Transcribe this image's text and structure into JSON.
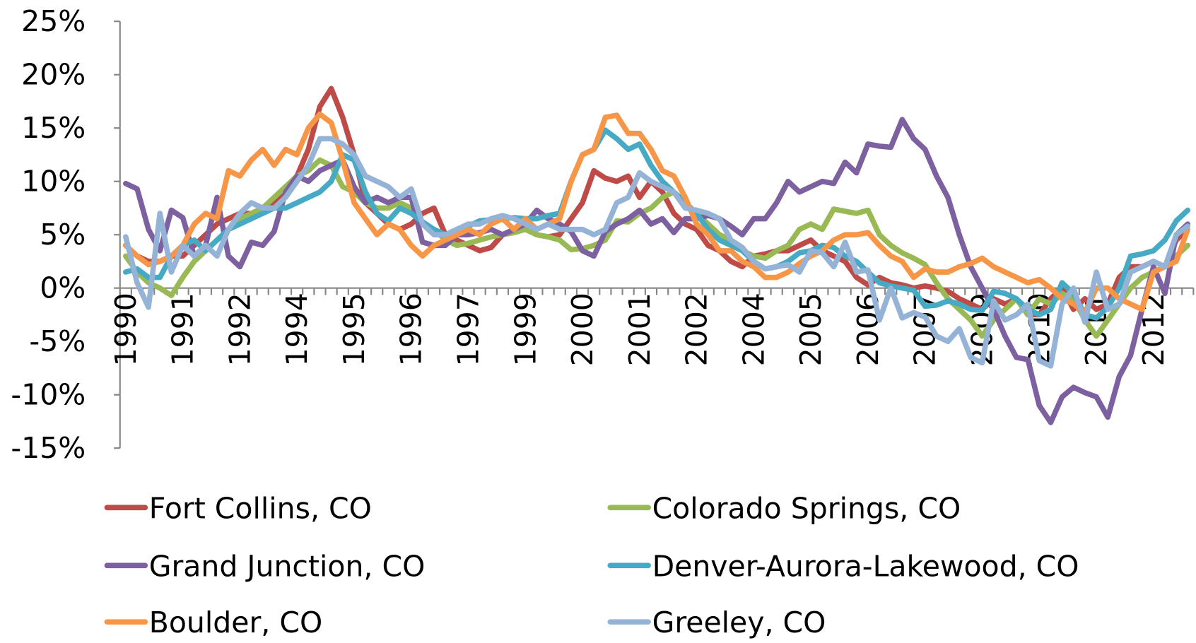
{
  "chart_data": {
    "type": "line",
    "categories": [
      "1990",
      null,
      null,
      null,
      null,
      "1991",
      null,
      null,
      null,
      null,
      "1992",
      null,
      null,
      null,
      null,
      "1994",
      null,
      null,
      null,
      null,
      "1995",
      null,
      null,
      null,
      null,
      "1996",
      null,
      null,
      null,
      null,
      "1997",
      null,
      null,
      null,
      null,
      "1999",
      null,
      null,
      null,
      null,
      "2000",
      null,
      null,
      null,
      null,
      "2001",
      null,
      null,
      null,
      null,
      "2002",
      null,
      null,
      null,
      null,
      "2004",
      null,
      null,
      null,
      null,
      "2005",
      null,
      null,
      null,
      null,
      "2006",
      null,
      null,
      null,
      null,
      "2007",
      null,
      null,
      null,
      null,
      "2009",
      null,
      null,
      null,
      null,
      "2010",
      null,
      null,
      null,
      null,
      "2011",
      null,
      null,
      null,
      null,
      "2012",
      null,
      null,
      null
    ],
    "ylim": [
      -15,
      25
    ],
    "yticks": [
      {
        "value": -15,
        "label": "-15%"
      },
      {
        "value": -10,
        "label": "-10%"
      },
      {
        "value": -5,
        "label": "-5%"
      },
      {
        "value": 0,
        "label": "0%"
      },
      {
        "value": 5,
        "label": "5%"
      },
      {
        "value": 10,
        "label": "10%"
      },
      {
        "value": 15,
        "label": "15%"
      },
      {
        "value": 20,
        "label": "20%"
      },
      {
        "value": 25,
        "label": "25%"
      }
    ],
    "grid": false,
    "legend": "bottom",
    "series": [
      {
        "name": "Fort Collins, CO",
        "color": "#be4b48",
        "values": [
          4,
          3,
          2.5,
          2.5,
          3,
          3,
          4,
          5,
          6,
          6.5,
          7,
          7,
          7,
          8,
          9,
          10.5,
          13,
          17,
          18.7,
          16,
          12.5,
          8,
          7,
          6,
          5.5,
          6,
          7,
          7.5,
          5,
          4.5,
          4,
          3.5,
          3.8,
          5,
          5.5,
          6,
          5,
          4.8,
          5,
          6.5,
          8,
          11,
          10.3,
          10,
          10.5,
          8.5,
          10,
          9,
          7,
          6,
          5.5,
          4,
          3.5,
          2.5,
          2,
          3,
          3.2,
          3.5,
          3.5,
          4,
          4.5,
          3.5,
          3,
          2.5,
          1,
          0.3,
          1,
          0.5,
          0.3,
          0,
          0.2,
          0,
          -0.3,
          -1,
          -1.5,
          -2,
          -1,
          -1.5,
          -1,
          -2.5,
          -2.5,
          -1,
          0,
          -2,
          -1,
          -2,
          -1.5,
          1,
          2,
          2,
          2.5,
          2,
          4.5,
          5.5
        ]
      },
      {
        "name": "Colorado Springs, CO",
        "color": "#98b954",
        "values": [
          3,
          1.5,
          0.5,
          0,
          -0.7,
          1,
          2.5,
          3.5,
          4.5,
          5.5,
          6.5,
          7,
          7.5,
          8.5,
          9.5,
          10.5,
          11,
          12,
          11.5,
          9.5,
          9,
          8,
          7.5,
          7.5,
          8,
          7.5,
          6,
          5.5,
          4.5,
          4,
          4.2,
          4.5,
          4.8,
          5,
          5.2,
          5.5,
          5,
          4.8,
          4.5,
          3.6,
          3.7,
          4,
          4.5,
          6.3,
          6.2,
          7,
          7.5,
          8.5,
          9,
          8,
          7,
          6,
          5,
          4.5,
          3.5,
          3,
          2.8,
          3.5,
          4,
          5.5,
          6,
          5.5,
          7.4,
          7.2,
          7,
          7.3,
          5,
          4,
          3.3,
          2.8,
          2.2,
          0.5,
          -1,
          -2,
          -3,
          -4.5,
          -3,
          -2,
          -1,
          -2.5,
          -1,
          -1.5,
          -0.5,
          -1,
          -3,
          -4.5,
          -3,
          -1.5,
          0,
          1,
          1.5,
          2,
          3,
          4
        ]
      },
      {
        "name": "Grand Junction, CO",
        "color": "#7d60a0",
        "values": [
          9.8,
          9.3,
          5.5,
          3.5,
          7.3,
          6.6,
          3,
          4,
          8.5,
          3,
          2,
          4.3,
          4,
          5.3,
          9,
          10.5,
          10,
          11,
          11.5,
          12,
          9.5,
          8,
          8.5,
          8,
          8.5,
          8.5,
          4.3,
          4,
          4,
          5,
          5,
          5.2,
          5.5,
          5,
          5.5,
          6,
          7.3,
          6.5,
          6,
          5.3,
          3.5,
          3,
          5.3,
          6,
          6.5,
          7.3,
          6,
          6.5,
          5.2,
          6.5,
          6.5,
          6.8,
          6.5,
          5.8,
          5,
          6.5,
          6.5,
          8,
          10,
          9,
          9.5,
          10,
          9.8,
          11.8,
          10.8,
          13.5,
          13.3,
          13.2,
          15.8,
          14,
          13,
          10.5,
          8.5,
          5,
          2,
          0,
          -2,
          -4.5,
          -6.5,
          -6.7,
          -11,
          -12.6,
          -10.2,
          -9.3,
          -9.8,
          -10.2,
          -12.1,
          -8.3,
          -6.3,
          -2,
          2,
          -0.5,
          5,
          6
        ]
      },
      {
        "name": "Denver-Aurora-Lakewood, CO",
        "color": "#46aac5",
        "values": [
          1.5,
          1.8,
          1,
          1,
          3,
          4,
          4.5,
          3.5,
          4.5,
          5.5,
          6,
          6.5,
          7,
          7.5,
          7.5,
          8,
          8.5,
          9,
          10,
          12.5,
          12,
          9,
          7,
          6.3,
          7.5,
          7,
          6.2,
          5.5,
          5,
          5.5,
          5.8,
          6.3,
          6.4,
          6.5,
          6.6,
          6.5,
          6.5,
          6.8,
          7,
          10,
          12.5,
          13,
          14.8,
          14,
          13,
          13.5,
          11.5,
          10,
          9,
          8,
          7,
          5.5,
          4.5,
          4,
          3.5,
          2.5,
          1.8,
          2,
          2.5,
          3.3,
          3.5,
          4,
          3.8,
          3,
          2.5,
          1.5,
          0.5,
          0.2,
          0,
          -0.2,
          -1.7,
          -1.6,
          -1.2,
          -1.5,
          -2,
          -2.1,
          -0.3,
          -0.5,
          -1,
          -2,
          -2.5,
          -2,
          0.5,
          -0.5,
          -2.5,
          -2.8,
          -1.8,
          0,
          3,
          3.2,
          3.5,
          4.5,
          6.3,
          7.3
        ]
      },
      {
        "name": "Boulder, CO",
        "color": "#f79646",
        "values": [
          4,
          3,
          2.2,
          2.5,
          3,
          4,
          6,
          7,
          6.5,
          11,
          10.5,
          12,
          13,
          11.5,
          13,
          12.5,
          15,
          16.3,
          15.5,
          12,
          8,
          6.5,
          5,
          6,
          5.5,
          4,
          3,
          4,
          4.5,
          5,
          5.5,
          5,
          6,
          6.5,
          5.5,
          6.5,
          5.5,
          6,
          6.5,
          10,
          12.5,
          13,
          16,
          16.2,
          14.5,
          14.5,
          13,
          11,
          10.5,
          8.5,
          6,
          5,
          3.5,
          3.5,
          2.5,
          2,
          1,
          1,
          1.5,
          2.3,
          3,
          3.5,
          4.5,
          5,
          5,
          5.2,
          4,
          3,
          2.5,
          1,
          1.8,
          1.5,
          1.5,
          2,
          2.3,
          2.8,
          2,
          1.5,
          1,
          0.5,
          0.8,
          0,
          -1,
          -1.5,
          -2.3,
          0,
          0,
          -1,
          -1.5,
          -2,
          1.5,
          2,
          2.5,
          5.5
        ]
      },
      {
        "name": "Greeley, CO",
        "color": "#95b3d7",
        "values": [
          4.8,
          0.5,
          -1.8,
          7,
          1.5,
          4,
          3,
          4,
          3,
          5.5,
          7,
          8,
          7.5,
          7.5,
          8.5,
          10,
          11.5,
          14,
          14,
          13.5,
          12.5,
          10.5,
          10,
          9.5,
          8.5,
          9.3,
          6,
          5,
          5,
          5.5,
          6,
          6,
          6.5,
          6.8,
          6.5,
          6,
          5.5,
          6,
          5.5,
          5.5,
          5.5,
          5,
          5.5,
          8,
          8.5,
          10.8,
          10,
          9.5,
          9,
          7.5,
          7.3,
          7,
          6.5,
          4.5,
          3.8,
          2.5,
          1.8,
          2,
          2.2,
          1.5,
          3.5,
          3.3,
          2,
          4.3,
          1.5,
          1.7,
          -3,
          0,
          -2.8,
          -2.3,
          -2.7,
          -4.5,
          -5,
          -3.8,
          -6.5,
          -7,
          -1.2,
          -3,
          -2.5,
          -1.5,
          -6.8,
          -7.3,
          -1.5,
          0,
          -3.2,
          1.5,
          -2,
          -1.5,
          1.5,
          2,
          2.5,
          2,
          5,
          5.8
        ]
      }
    ]
  }
}
